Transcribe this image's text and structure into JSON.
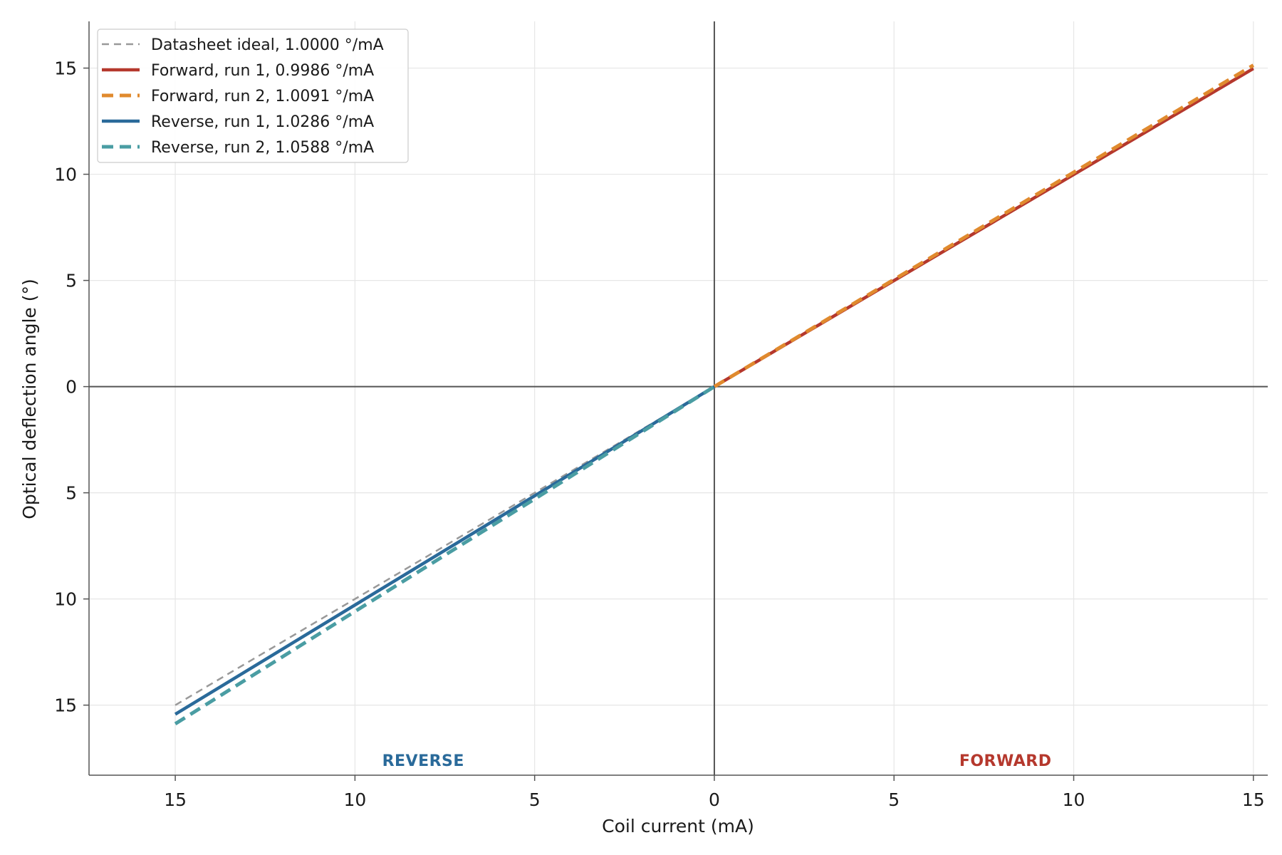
{
  "chart_data": {
    "type": "line",
    "title": "",
    "xlabel": "Coil current (mA)",
    "ylabel": "Optical deflection angle (°)",
    "xlim": [
      -17.4,
      15.4
    ],
    "ylim": [
      -18.3,
      17.2
    ],
    "xticks": [
      {
        "value": -15,
        "label": "15"
      },
      {
        "value": -10,
        "label": "10"
      },
      {
        "value": -5,
        "label": "5"
      },
      {
        "value": 0,
        "label": "0"
      },
      {
        "value": 5,
        "label": "5"
      },
      {
        "value": 10,
        "label": "10"
      },
      {
        "value": 15,
        "label": "15"
      }
    ],
    "yticks": [
      {
        "value": 15,
        "label": "15"
      },
      {
        "value": 10,
        "label": "10"
      },
      {
        "value": 5,
        "label": "5"
      },
      {
        "value": 0,
        "label": "0"
      },
      {
        "value": -5,
        "label": "5"
      },
      {
        "value": -10,
        "label": "10"
      },
      {
        "value": -15,
        "label": "15"
      }
    ],
    "grid": true,
    "legend_position": "top-left",
    "series": [
      {
        "name": "Datasheet ideal, 1.0000 °/mA",
        "color": "#999999",
        "style": "dashed",
        "x": [
          -15,
          0,
          15
        ],
        "y": [
          -15,
          0,
          15
        ]
      },
      {
        "name": "Forward, run 1, 0.9986 °/mA",
        "color": "#b5382d",
        "style": "solid",
        "x": [
          0,
          15
        ],
        "y": [
          0,
          14.979
        ]
      },
      {
        "name": "Forward, run 2, 1.0091 °/mA",
        "color": "#e08a2e",
        "style": "dashed",
        "x": [
          0,
          15
        ],
        "y": [
          0,
          15.137
        ]
      },
      {
        "name": "Reverse, run 1, 1.0286 °/mA",
        "color": "#2a6a9a",
        "style": "solid",
        "x": [
          -15,
          0
        ],
        "y": [
          -15.429,
          0
        ]
      },
      {
        "name": "Reverse, run 2, 1.0588 °/mA",
        "color": "#4a9da3",
        "style": "dashed",
        "x": [
          -15,
          0
        ],
        "y": [
          -15.882,
          0
        ]
      }
    ],
    "annotations": [
      {
        "text": "REVERSE",
        "x": -8.1,
        "y": -17.6,
        "color": "#2a6a9a"
      },
      {
        "text": "FORWARD",
        "x": 8.1,
        "y": -17.6,
        "color": "#b5382d"
      }
    ]
  }
}
